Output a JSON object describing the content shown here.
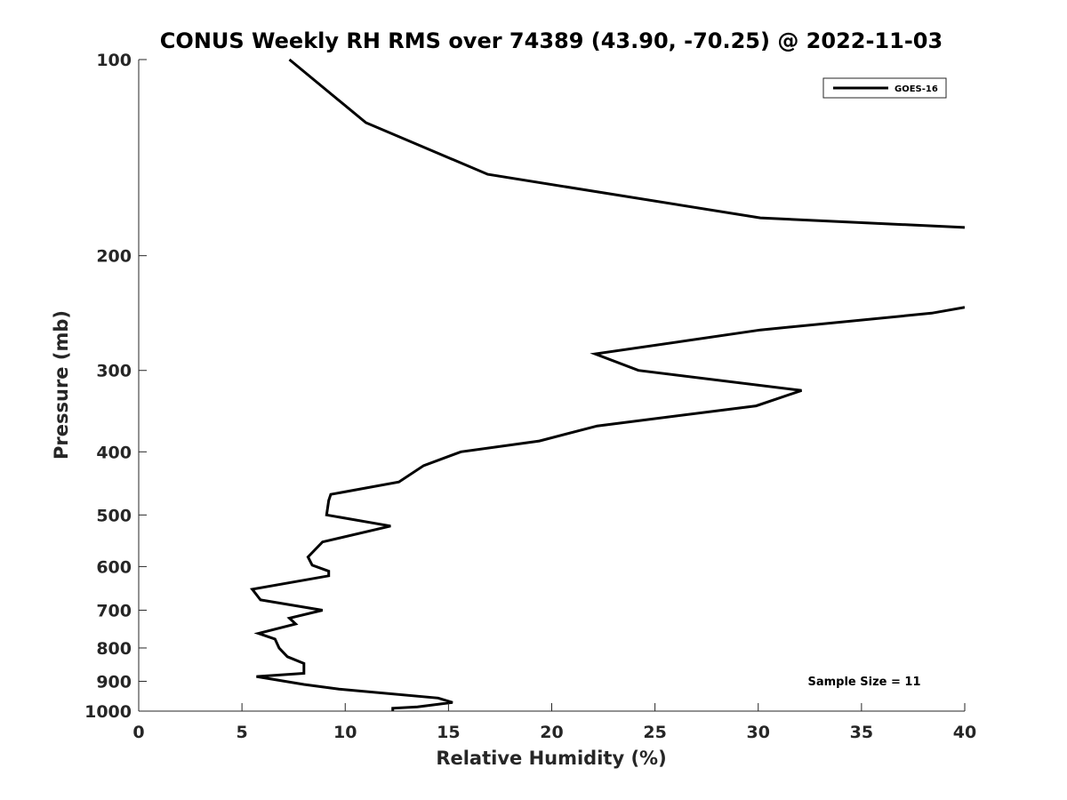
{
  "chart_data": {
    "type": "line",
    "title": "CONUS Weekly RH RMS over 74389 (43.90, -70.25) @ 2022-11-03",
    "xlabel": "Relative Humidity (%)",
    "ylabel": "Pressure (mb)",
    "xlim": [
      0,
      40
    ],
    "ylim": [
      100,
      1000
    ],
    "y_scale": "log",
    "y_reversed": true,
    "xticks": [
      0,
      5,
      10,
      15,
      20,
      25,
      30,
      35,
      40
    ],
    "yticks": [
      100,
      200,
      300,
      400,
      500,
      600,
      700,
      800,
      900,
      1000
    ],
    "grid": false,
    "legend_position": "top-right",
    "annotation": "Sample Size = 11",
    "series": [
      {
        "name": "GOES-16",
        "color": "#000000",
        "points": [
          [
            7.3,
            100
          ],
          [
            11.0,
            125
          ],
          [
            16.9,
            150
          ],
          [
            30.1,
            175
          ],
          [
            40.0,
            181
          ],
          [
            null,
            null
          ],
          [
            40.0,
            240
          ],
          [
            38.4,
            245
          ],
          [
            30.1,
            260
          ],
          [
            22.1,
            283
          ],
          [
            24.2,
            300
          ],
          [
            32.1,
            322
          ],
          [
            29.9,
            340
          ],
          [
            22.2,
            365
          ],
          [
            19.4,
            385
          ],
          [
            15.6,
            400
          ],
          [
            13.8,
            420
          ],
          [
            12.6,
            445
          ],
          [
            9.3,
            465
          ],
          [
            9.2,
            475
          ],
          [
            9.1,
            500
          ],
          [
            12.2,
            520
          ],
          [
            8.9,
            550
          ],
          [
            8.2,
            580
          ],
          [
            8.4,
            597
          ],
          [
            9.2,
            610
          ],
          [
            9.2,
            620
          ],
          [
            5.5,
            650
          ],
          [
            5.9,
            675
          ],
          [
            8.9,
            700
          ],
          [
            7.3,
            720
          ],
          [
            7.6,
            735
          ],
          [
            5.8,
            760
          ],
          [
            6.6,
            775
          ],
          [
            6.8,
            800
          ],
          [
            7.2,
            825
          ],
          [
            8.0,
            845
          ],
          [
            8.0,
            875
          ],
          [
            5.7,
            885
          ],
          [
            8.0,
            910
          ],
          [
            9.7,
            925
          ],
          [
            14.5,
            955
          ],
          [
            15.2,
            970
          ],
          [
            13.5,
            985
          ],
          [
            12.3,
            990
          ],
          [
            12.3,
            1000
          ]
        ]
      }
    ]
  }
}
